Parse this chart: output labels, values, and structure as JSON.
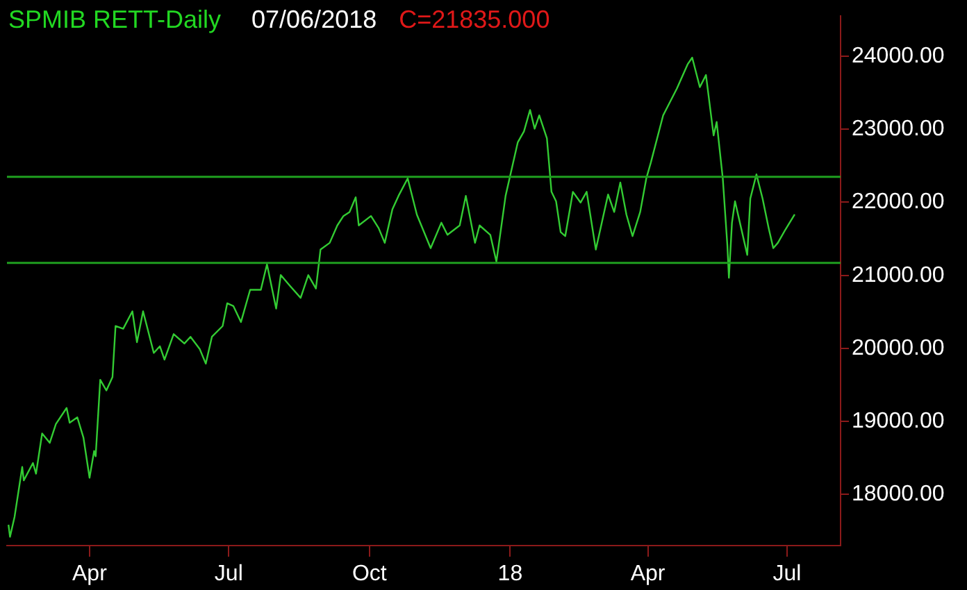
{
  "chart_data": {
    "type": "line",
    "title": "SPMIB RETT-Daily",
    "subtitle": "07/06/2018",
    "annotations": [
      "C=21835.000"
    ],
    "x": [
      "2017-02-07",
      "2017-02-08",
      "2017-02-11",
      "2017-02-16",
      "2017-02-17",
      "2017-02-23",
      "2017-02-25",
      "2017-03-01",
      "2017-03-06",
      "2017-03-10",
      "2017-03-17",
      "2017-03-19",
      "2017-03-24",
      "2017-03-28",
      "2017-04-01",
      "2017-04-04",
      "2017-04-05",
      "2017-04-08",
      "2017-04-12",
      "2017-04-16",
      "2017-04-18",
      "2017-04-23",
      "2017-04-29",
      "2017-05-02",
      "2017-05-06",
      "2017-05-13",
      "2017-05-17",
      "2017-05-20",
      "2017-05-26",
      "2017-06-02",
      "2017-06-06",
      "2017-06-12",
      "2017-06-16",
      "2017-06-20",
      "2017-06-27",
      "2017-06-30",
      "2017-07-04",
      "2017-07-09",
      "2017-07-15",
      "2017-07-22",
      "2017-07-26",
      "2017-08-01",
      "2017-08-04",
      "2017-08-10",
      "2017-08-17",
      "2017-08-22",
      "2017-08-27",
      "2017-08-30",
      "2017-09-05",
      "2017-09-10",
      "2017-09-14",
      "2017-09-18",
      "2017-09-22",
      "2017-09-24",
      "2017-10-02",
      "2017-10-07",
      "2017-10-11",
      "2017-10-16",
      "2017-10-20",
      "2017-10-26",
      "2017-11-01",
      "2017-11-10",
      "2017-11-17",
      "2017-11-21",
      "2017-11-29",
      "2017-12-03",
      "2017-12-09",
      "2017-12-12",
      "2017-12-19",
      "2017-12-23",
      "2017-12-29",
      "2018-01-06",
      "2018-01-10",
      "2018-01-14",
      "2018-01-17",
      "2018-01-20",
      "2018-01-25",
      "2018-01-28",
      "2018-01-31",
      "2018-02-03",
      "2018-02-06",
      "2018-02-11",
      "2018-02-16",
      "2018-02-20",
      "2018-02-26",
      "2018-03-06",
      "2018-03-10",
      "2018-03-14",
      "2018-03-18",
      "2018-03-22",
      "2018-03-27",
      "2018-03-31",
      "2018-04-03",
      "2018-04-11",
      "2018-04-20",
      "2018-04-27",
      "2018-04-30",
      "2018-05-05",
      "2018-05-09",
      "2018-05-14",
      "2018-05-16",
      "2018-05-20",
      "2018-05-23",
      "2018-05-24",
      "2018-05-26",
      "2018-05-28",
      "2018-06-01",
      "2018-06-05",
      "2018-06-07",
      "2018-06-11",
      "2018-06-15",
      "2018-06-19",
      "2018-06-22",
      "2018-06-25",
      "2018-06-30",
      "2018-07-06"
    ],
    "series": [
      {
        "color": "#33cc33",
        "values": [
          17585,
          17420,
          17695,
          18376,
          18192,
          18431,
          18284,
          18835,
          18707,
          18964,
          19184,
          18982,
          19056,
          18780,
          18229,
          18596,
          18523,
          19570,
          19424,
          19607,
          20306,
          20269,
          20508,
          20085,
          20508,
          19938,
          20030,
          19846,
          20196,
          20067,
          20159,
          19993,
          19791,
          20159,
          20306,
          20618,
          20581,
          20361,
          20802,
          20802,
          21151,
          20545,
          21004,
          20857,
          20692,
          21004,
          20820,
          21353,
          21445,
          21684,
          21813,
          21868,
          22070,
          21684,
          21813,
          21647,
          21445,
          21905,
          22089,
          22328,
          21831,
          21372,
          21721,
          21555,
          21684,
          22089,
          21445,
          21684,
          21555,
          21188,
          22089,
          22824,
          22971,
          23265,
          23008,
          23191,
          22879,
          22144,
          22015,
          21592,
          21537,
          22144,
          21997,
          22144,
          21353,
          22107,
          21868,
          22272,
          21831,
          21537,
          21868,
          22328,
          22548,
          23191,
          23559,
          23890,
          23982,
          23577,
          23743,
          22916,
          23100,
          22328,
          21408,
          20967,
          21721,
          22015,
          21647,
          21280,
          22052,
          22383,
          22052,
          21647,
          21372,
          21445,
          21629,
          21835
        ]
      }
    ],
    "xlim": [
      "2017-02-06",
      "2018-08-05"
    ],
    "xticks": [
      {
        "value": "2017-04-01",
        "label": "Apr"
      },
      {
        "value": "2017-07-01",
        "label": "Jul"
      },
      {
        "value": "2017-10-01",
        "label": "Oct"
      },
      {
        "value": "2018-01-01",
        "label": "18"
      },
      {
        "value": "2018-04-01",
        "label": "Apr"
      },
      {
        "value": "2018-07-01",
        "label": "Jul"
      }
    ],
    "ylim": [
      17300,
      24550
    ],
    "yticks": [
      {
        "value": 18000,
        "label": "18000.00"
      },
      {
        "value": 19000,
        "label": "19000.00"
      },
      {
        "value": 20000,
        "label": "20000.00"
      },
      {
        "value": 21000,
        "label": "21000.00"
      },
      {
        "value": 22000,
        "label": "22000.00"
      },
      {
        "value": 23000,
        "label": "23000.00"
      },
      {
        "value": 24000,
        "label": "24000.00"
      }
    ],
    "ref_lines": [
      {
        "axis": "y",
        "value": 22350,
        "color": "#1f9f1f"
      },
      {
        "axis": "y",
        "value": 21170,
        "color": "#1f9f1f"
      }
    ],
    "grid": false,
    "legend": false,
    "marker": "none",
    "line_style": "solid"
  }
}
